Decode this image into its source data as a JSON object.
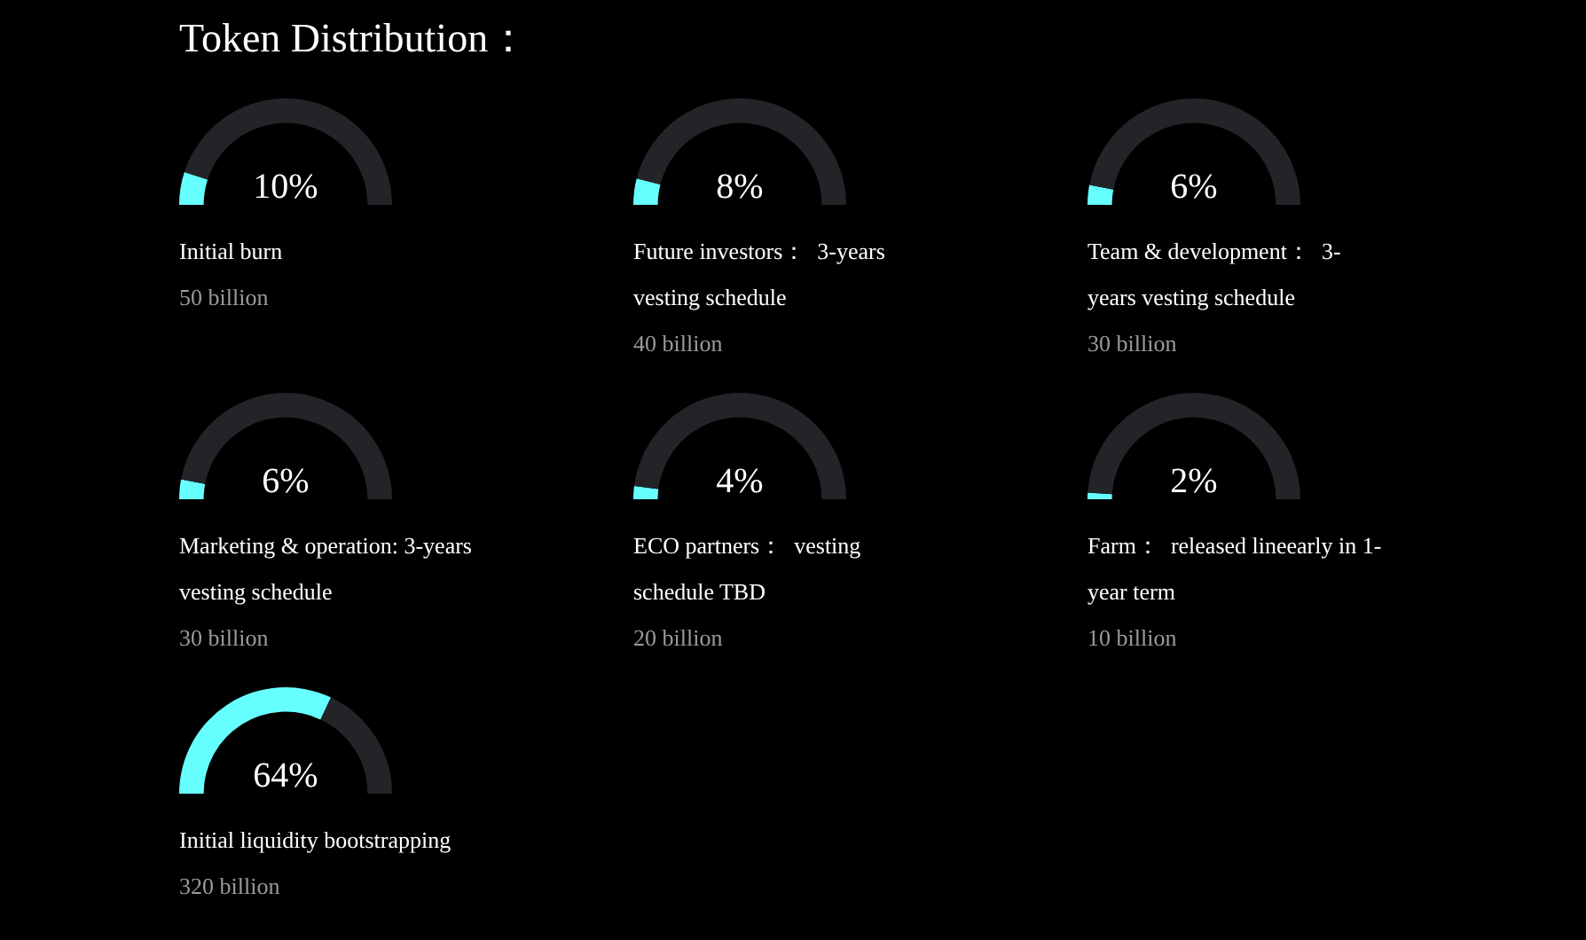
{
  "chart_data": [
    {
      "type": "other",
      "title": "Token Distribution："
    },
    {
      "type": "donut",
      "title": "Initial burn",
      "categories": [
        null,
        null
      ],
      "values": [
        10,
        90
      ],
      "colors": [
        "#66ffff",
        "#222428"
      ],
      "annotations": [
        "10%",
        "50 billion"
      ]
    },
    {
      "type": "donut",
      "title": "Future investors：  3-years vesting schedule",
      "categories": [
        null,
        null
      ],
      "values": [
        8,
        92
      ],
      "colors": [
        "#66ffff",
        "#222428"
      ],
      "annotations": [
        "8%",
        "40 billion"
      ]
    },
    {
      "type": "donut",
      "title": "Team & development：  3-years vesting schedule",
      "categories": [
        null,
        null
      ],
      "values": [
        6,
        94
      ],
      "colors": [
        "#66ffff",
        "#222428"
      ],
      "annotations": [
        "6%",
        "30 billion"
      ]
    },
    {
      "type": "donut",
      "title": "Marketing & operation: 3-years vesting schedule",
      "categories": [
        null,
        null
      ],
      "values": [
        6,
        94
      ],
      "colors": [
        "#66ffff",
        "#222428"
      ],
      "annotations": [
        "6%",
        "30 billion"
      ]
    },
    {
      "type": "donut",
      "title": "ECO partners：  vesting schedule TBD",
      "categories": [
        null,
        null
      ],
      "values": [
        4,
        96
      ],
      "colors": [
        "#66ffff",
        "#222428"
      ],
      "annotations": [
        "4%",
        "20 billion"
      ]
    },
    {
      "type": "donut",
      "title": "Farm：  released lineearly in 1-year term",
      "categories": [
        null,
        null
      ],
      "values": [
        2,
        98
      ],
      "colors": [
        "#66ffff",
        "#222428"
      ],
      "annotations": [
        "2%",
        "10 billion"
      ]
    },
    {
      "type": "donut",
      "title": "Initial liquidity bootstrapping",
      "categories": [
        null,
        null
      ],
      "values": [
        64,
        36
      ],
      "colors": [
        "#66ffff",
        "#222428"
      ],
      "annotations": [
        "64%",
        "320 billion"
      ]
    }
  ]
}
